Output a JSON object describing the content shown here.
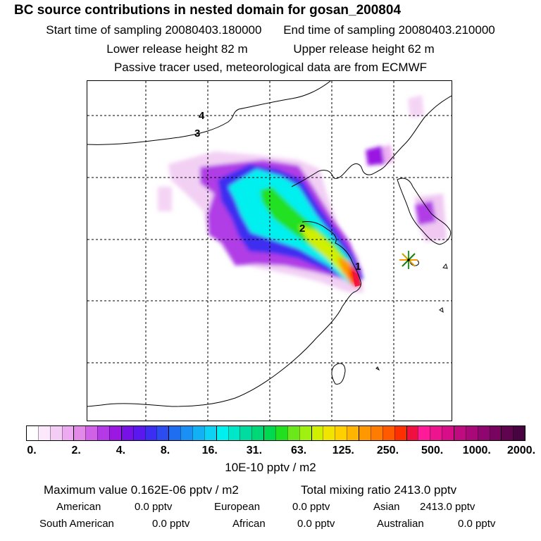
{
  "title": "BC  source contributions in nested domain for gosan_200804",
  "header": {
    "start_label": "Start time of sampling 20080403.180000",
    "end_label": "End time of sampling 20080403.210000",
    "lower_label": "Lower release height   82 m",
    "upper_label": "Upper release height   62 m",
    "tracer_line": "Passive tracer used, meteorological data are from ECMWF"
  },
  "map": {
    "trajectory_labels": [
      "1",
      "2",
      "3",
      "4"
    ],
    "receptor_marker": "asterisk-star-icon"
  },
  "colorbar": {
    "ticks": [
      "0.",
      "2.",
      "4.",
      "8.",
      "16.",
      "31.",
      "63.",
      "125.",
      "250.",
      "500.",
      "1000.",
      "2000."
    ],
    "unit": "10E-10 pptv / m2",
    "colors": [
      "#ffffff",
      "#fbe8fb",
      "#f4cdf4",
      "#eeaaf0",
      "#e38ae9",
      "#cf62e6",
      "#b33ae6",
      "#9a18e2",
      "#7810e8",
      "#5a18ee",
      "#3c2ef0",
      "#2a4cf0",
      "#1f6ef2",
      "#1a90f4",
      "#12b0f4",
      "#0ed2f4",
      "#00f0f0",
      "#00e6c8",
      "#00dca0",
      "#00d878",
      "#00d850",
      "#20e020",
      "#6ae81a",
      "#a0f012",
      "#d0f000",
      "#f0e400",
      "#ffd000",
      "#ffb400",
      "#ff9800",
      "#ff7c00",
      "#ff5a00",
      "#ff3000",
      "#f01040",
      "#ff1a9a",
      "#ee1490",
      "#d80e88",
      "#c00a80",
      "#a80878",
      "#900670",
      "#780460",
      "#600450",
      "#480440"
    ]
  },
  "stats": {
    "max_line": "Maximum value  0.162E-06 pptv / m2",
    "total_line": "Total mixing ratio     2413.0 pptv",
    "american_label": "American",
    "american_value": "0.0 pptv",
    "european_label": "European",
    "european_value": "0.0 pptv",
    "asian_label": "Asian",
    "asian_value": "2413.0 pptv",
    "south_american_label": "South American",
    "south_american_value": "0.0 pptv",
    "african_label": "African",
    "african_value": "0.0 pptv",
    "australian_label": "Australian",
    "australian_value": "0.0 pptv"
  }
}
